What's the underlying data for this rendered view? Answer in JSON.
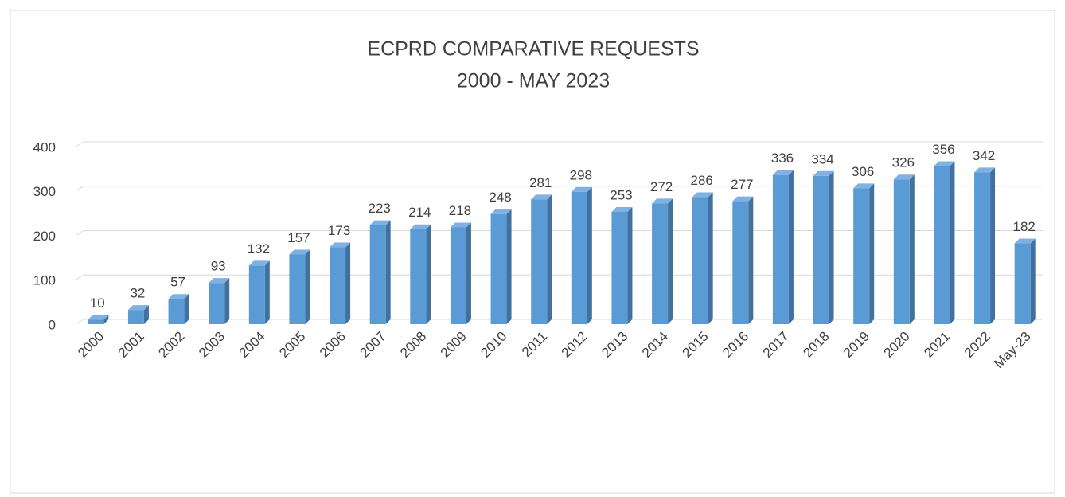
{
  "chart_data": {
    "type": "bar3d",
    "title": "ECPRD COMPARATIVE REQUESTS",
    "subtitle": "2000 -  MAY 2023",
    "categories": [
      "2000",
      "2001",
      "2002",
      "2003",
      "2004",
      "2005",
      "2006",
      "2007",
      "2008",
      "2009",
      "2010",
      "2011",
      "2012",
      "2013",
      "2014",
      "2015",
      "2016",
      "2017",
      "2018",
      "2019",
      "2020",
      "2021",
      "2022",
      "May-23"
    ],
    "values": [
      10,
      32,
      57,
      93,
      132,
      157,
      173,
      223,
      214,
      218,
      248,
      281,
      298,
      253,
      272,
      286,
      277,
      336,
      334,
      306,
      326,
      356,
      342,
      182
    ],
    "color": "#5b9bd5",
    "ylim": [
      0,
      400
    ],
    "yticks": [
      0,
      100,
      200,
      300,
      400
    ],
    "grid": true
  }
}
